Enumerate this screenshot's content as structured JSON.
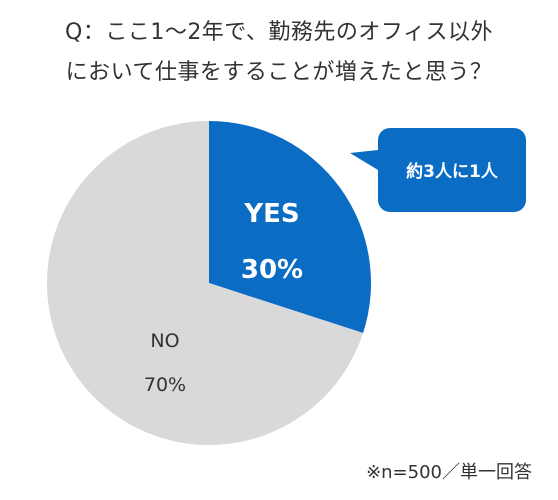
{
  "chart_data": {
    "type": "pie",
    "title_lines": [
      "Q：ここ1～2年で、勤務先のオフィス以外",
      "において仕事をすることが増えたと思う？"
    ],
    "slices": [
      {
        "label": "YES",
        "value": 30,
        "value_label": "30%",
        "color": "#0b6cc4",
        "text_color": "#ffffff"
      },
      {
        "label": "NO",
        "value": 70,
        "value_label": "70%",
        "color": "#d9d9d9",
        "text_color": "#333333"
      }
    ],
    "callout": {
      "text": "約3人に1人",
      "color": "#0b6cc4",
      "text_color": "#ffffff"
    },
    "footnote": "※n=500／単一回答"
  }
}
